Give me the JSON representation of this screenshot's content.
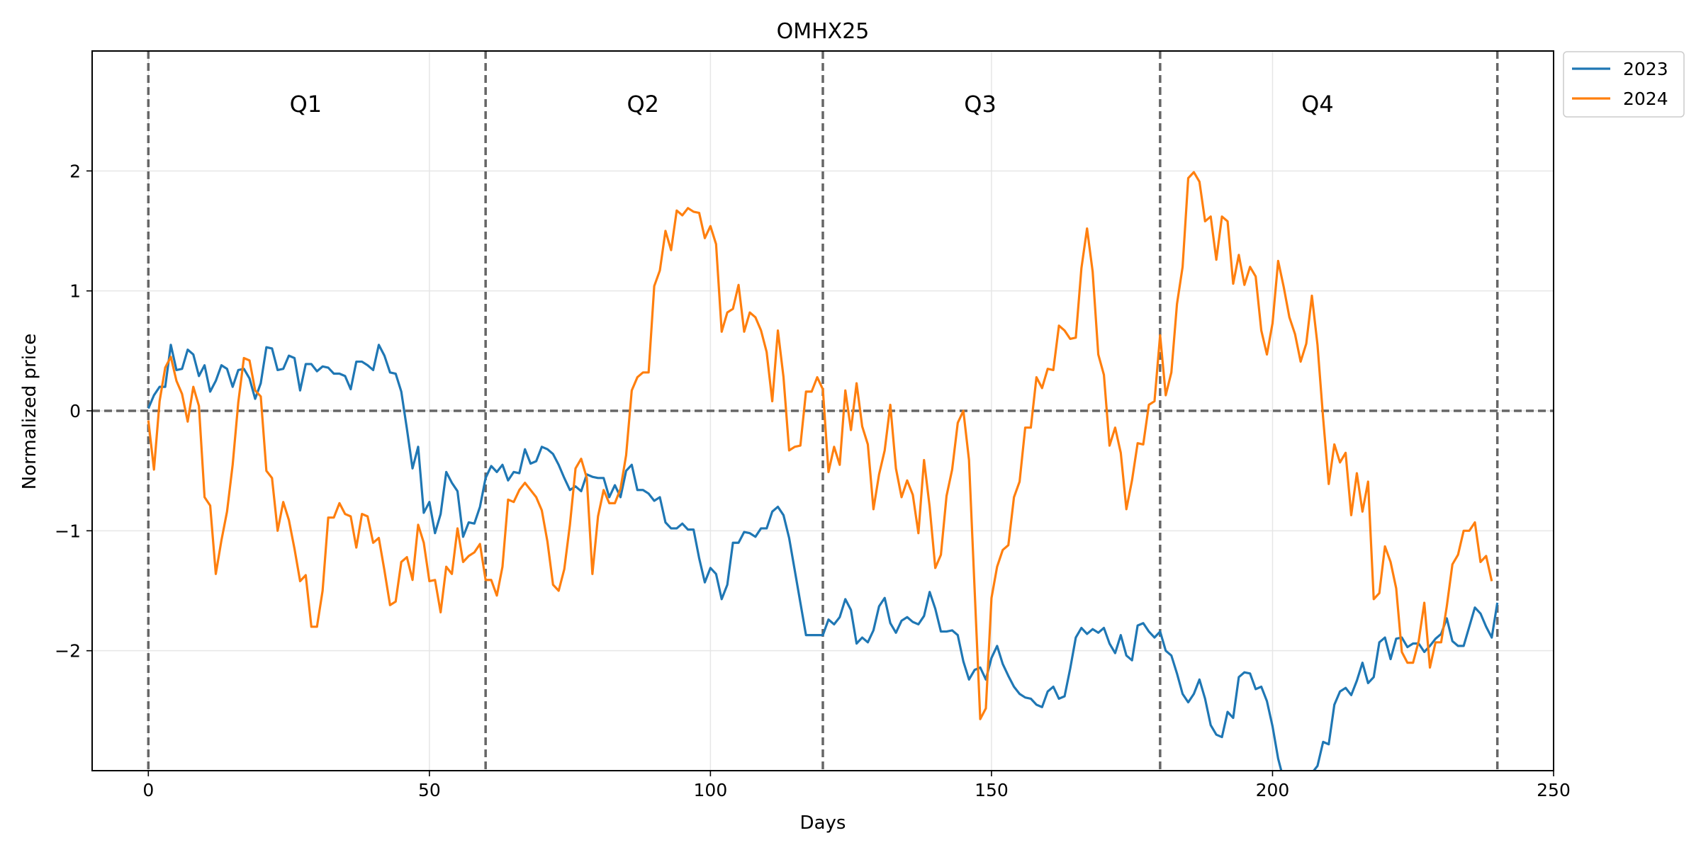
{
  "chart_data": {
    "type": "line",
    "title": "OMHX25",
    "xlabel": "Days",
    "ylabel": "Normalized price",
    "xlim": [
      -10,
      250
    ],
    "ylim": [
      -3.0,
      3.0
    ],
    "xticks": [
      0,
      50,
      100,
      150,
      200,
      250
    ],
    "yticks": [
      -2,
      -1,
      0,
      1,
      2
    ],
    "grid": true,
    "legend_position": "outside-top-right",
    "reference_lines": {
      "horizontal": [
        0
      ],
      "vertical": [
        0,
        60,
        120,
        180,
        240
      ]
    },
    "annotations": [
      {
        "text": "Q1",
        "x": 28,
        "y": 2.55
      },
      {
        "text": "Q2",
        "x": 88,
        "y": 2.55
      },
      {
        "text": "Q3",
        "x": 148,
        "y": 2.55
      },
      {
        "text": "Q4",
        "x": 208,
        "y": 2.55
      }
    ],
    "series": [
      {
        "name": "2023",
        "color": "#1f77b4",
        "x_start": 0,
        "values": [
          0.02,
          0.13,
          0.2,
          0.2,
          0.55,
          0.34,
          0.35,
          0.51,
          0.47,
          0.29,
          0.38,
          0.16,
          0.25,
          0.38,
          0.35,
          0.2,
          0.34,
          0.35,
          0.27,
          0.1,
          0.23,
          0.53,
          0.52,
          0.34,
          0.35,
          0.46,
          0.44,
          0.17,
          0.39,
          0.39,
          0.33,
          0.37,
          0.36,
          0.31,
          0.31,
          0.29,
          0.18,
          0.41,
          0.41,
          0.38,
          0.34,
          0.55,
          0.46,
          0.32,
          0.31,
          0.16,
          -0.15,
          -0.48,
          -0.3,
          -0.85,
          -0.76,
          -1.02,
          -0.86,
          -0.51,
          -0.6,
          -0.67,
          -1.05,
          -0.93,
          -0.94,
          -0.8,
          -0.56,
          -0.46,
          -0.51,
          -0.45,
          -0.58,
          -0.51,
          -0.52,
          -0.32,
          -0.44,
          -0.42,
          -0.3,
          -0.32,
          -0.36,
          -0.45,
          -0.56,
          -0.66,
          -0.63,
          -0.67,
          -0.53,
          -0.55,
          -0.56,
          -0.56,
          -0.72,
          -0.62,
          -0.72,
          -0.5,
          -0.45,
          -0.66,
          -0.66,
          -0.69,
          -0.75,
          -0.72,
          -0.93,
          -0.98,
          -0.98,
          -0.94,
          -0.99,
          -0.99,
          -1.23,
          -1.43,
          -1.31,
          -1.36,
          -1.57,
          -1.45,
          -1.1,
          -1.1,
          -1.01,
          -1.02,
          -1.05,
          -0.98,
          -0.98,
          -0.84,
          -0.8,
          -0.87,
          -1.06,
          -1.33,
          -1.6,
          -1.87,
          -1.87,
          -1.87,
          -1.87,
          -1.74,
          -1.78,
          -1.72,
          -1.57,
          -1.66,
          -1.94,
          -1.89,
          -1.93,
          -1.83,
          -1.63,
          -1.56,
          -1.77,
          -1.85,
          -1.75,
          -1.72,
          -1.76,
          -1.78,
          -1.71,
          -1.51,
          -1.65,
          -1.84,
          -1.84,
          -1.83,
          -1.87,
          -2.09,
          -2.24,
          -2.16,
          -2.14,
          -2.24,
          -2.06,
          -1.96,
          -2.11,
          -2.21,
          -2.3,
          -2.36,
          -2.39,
          -2.4,
          -2.45,
          -2.47,
          -2.34,
          -2.3,
          -2.4,
          -2.38,
          -2.15,
          -1.89,
          -1.81,
          -1.86,
          -1.82,
          -1.85,
          -1.81,
          -1.94,
          -2.02,
          -1.87,
          -2.04,
          -2.08,
          -1.79,
          -1.77,
          -1.84,
          -1.89,
          -1.84,
          -2.0,
          -2.04,
          -2.19,
          -2.36,
          -2.43,
          -2.36,
          -2.24,
          -2.4,
          -2.62,
          -2.7,
          -2.72,
          -2.51,
          -2.56,
          -2.22,
          -2.18,
          -2.19,
          -2.32,
          -2.3,
          -2.42,
          -2.63,
          -2.9,
          -3.08,
          -3.18,
          -3.1,
          -3.08,
          -3.05,
          -3.02,
          -2.96,
          -2.76,
          -2.78,
          -2.45,
          -2.34,
          -2.31,
          -2.37,
          -2.25,
          -2.1,
          -2.27,
          -2.22,
          -1.93,
          -1.89,
          -2.07,
          -1.9,
          -1.89,
          -1.97,
          -1.94,
          -1.94,
          -2.01,
          -1.96,
          -1.9,
          -1.86,
          -1.73,
          -1.92,
          -1.96,
          -1.96,
          -1.8,
          -1.64,
          -1.69,
          -1.8,
          -1.89,
          -1.6
        ]
      },
      {
        "name": "2024",
        "color": "#ff7f0e",
        "x_start": 0,
        "values": [
          -0.08,
          -0.49,
          0.08,
          0.36,
          0.45,
          0.25,
          0.14,
          -0.09,
          0.2,
          0.04,
          -0.72,
          -0.79,
          -1.36,
          -1.08,
          -0.84,
          -0.45,
          0.07,
          0.44,
          0.42,
          0.17,
          0.12,
          -0.5,
          -0.56,
          -1.0,
          -0.76,
          -0.91,
          -1.15,
          -1.42,
          -1.37,
          -1.8,
          -1.8,
          -1.5,
          -0.89,
          -0.89,
          -0.77,
          -0.86,
          -0.88,
          -1.14,
          -0.86,
          -0.88,
          -1.1,
          -1.06,
          -1.33,
          -1.62,
          -1.59,
          -1.26,
          -1.22,
          -1.41,
          -0.95,
          -1.1,
          -1.42,
          -1.41,
          -1.68,
          -1.3,
          -1.36,
          -0.98,
          -1.26,
          -1.21,
          -1.18,
          -1.11,
          -1.41,
          -1.41,
          -1.54,
          -1.3,
          -0.74,
          -0.76,
          -0.66,
          -0.6,
          -0.66,
          -0.72,
          -0.83,
          -1.09,
          -1.45,
          -1.5,
          -1.32,
          -0.95,
          -0.48,
          -0.4,
          -0.56,
          -1.36,
          -0.88,
          -0.66,
          -0.77,
          -0.77,
          -0.65,
          -0.37,
          0.17,
          0.28,
          0.32,
          0.32,
          1.04,
          1.17,
          1.5,
          1.34,
          1.67,
          1.63,
          1.69,
          1.66,
          1.65,
          1.44,
          1.54,
          1.39,
          0.66,
          0.82,
          0.85,
          1.05,
          0.66,
          0.82,
          0.78,
          0.67,
          0.49,
          0.08,
          0.67,
          0.28,
          -0.33,
          -0.3,
          -0.29,
          0.16,
          0.16,
          0.28,
          0.18,
          -0.51,
          -0.3,
          -0.45,
          0.17,
          -0.16,
          0.23,
          -0.13,
          -0.28,
          -0.82,
          -0.53,
          -0.33,
          0.05,
          -0.48,
          -0.72,
          -0.58,
          -0.7,
          -1.02,
          -0.41,
          -0.8,
          -1.31,
          -1.2,
          -0.71,
          -0.49,
          -0.1,
          0.0,
          -0.41,
          -1.49,
          -2.57,
          -2.48,
          -1.56,
          -1.3,
          -1.16,
          -1.12,
          -0.72,
          -0.59,
          -0.14,
          -0.14,
          0.28,
          0.19,
          0.35,
          0.34,
          0.71,
          0.67,
          0.6,
          0.61,
          1.19,
          1.52,
          1.16,
          0.47,
          0.3,
          -0.29,
          -0.14,
          -0.35,
          -0.82,
          -0.58,
          -0.27,
          -0.28,
          0.05,
          0.08,
          0.63,
          0.13,
          0.32,
          0.89,
          1.2,
          1.94,
          1.99,
          1.91,
          1.58,
          1.62,
          1.26,
          1.62,
          1.58,
          1.06,
          1.3,
          1.05,
          1.2,
          1.12,
          0.67,
          0.47,
          0.73,
          1.25,
          1.03,
          0.78,
          0.64,
          0.41,
          0.56,
          0.96,
          0.55,
          -0.06,
          -0.61,
          -0.28,
          -0.43,
          -0.35,
          -0.87,
          -0.52,
          -0.84,
          -0.59,
          -1.57,
          -1.52,
          -1.13,
          -1.26,
          -1.48,
          -2.01,
          -2.1,
          -2.1,
          -1.92,
          -1.6,
          -2.14,
          -1.93,
          -1.93,
          -1.63,
          -1.28,
          -1.2,
          -1.0,
          -1.0,
          -0.93,
          -1.26,
          -1.21,
          -1.42
        ]
      }
    ]
  }
}
